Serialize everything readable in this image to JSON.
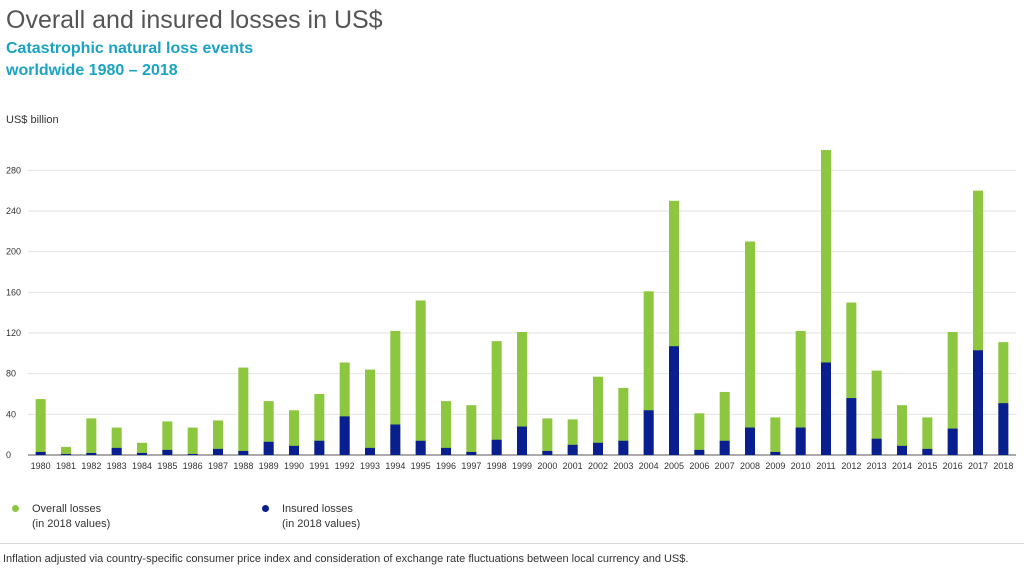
{
  "title": "Overall and insured losses in US$",
  "subtitle": "Catastrophic natural loss events\nworldwide 1980 – 2018",
  "colors": {
    "subtitle": "#1aa3c2",
    "overall": "#8dc63f",
    "insured": "#0a1f8f",
    "grid": "#e2e2e2",
    "axis": "#555555"
  },
  "legend": {
    "overall": "Overall losses\n(in 2018 values)",
    "insured": "Insured losses\n(in 2018 values)"
  },
  "footnote": "Inflation adjusted via country-specific consumer price index and consideration of exchange rate fluctuations between local currency and US$.",
  "chart_data": {
    "type": "bar",
    "stacked": "overlay",
    "ylabel": "US$ billion",
    "ylim": [
      0,
      300
    ],
    "yticks": [
      0,
      40,
      80,
      120,
      160,
      200,
      240,
      280
    ],
    "grid": true,
    "legend_position": "bottom-left",
    "categories": [
      "1980",
      "1981",
      "1982",
      "1983",
      "1984",
      "1985",
      "1986",
      "1987",
      "1988",
      "1989",
      "1990",
      "1991",
      "1992",
      "1993",
      "1994",
      "1995",
      "1996",
      "1997",
      "1998",
      "1999",
      "2000",
      "2001",
      "2002",
      "2003",
      "2004",
      "2005",
      "2006",
      "2007",
      "2008",
      "2009",
      "2010",
      "2011",
      "2012",
      "2013",
      "2014",
      "2015",
      "2016",
      "2017",
      "2018"
    ],
    "series": [
      {
        "name": "Overall losses (in 2018 values)",
        "color": "#8dc63f",
        "values": [
          55,
          8,
          36,
          27,
          12,
          33,
          27,
          34,
          86,
          53,
          44,
          60,
          91,
          84,
          122,
          152,
          53,
          49,
          112,
          121,
          36,
          35,
          77,
          66,
          161,
          250,
          41,
          62,
          210,
          37,
          122,
          300,
          150,
          83,
          49,
          37,
          121,
          260,
          111
        ]
      },
      {
        "name": "Insured losses (in 2018 values)",
        "color": "#0a1f8f",
        "values": [
          3,
          1,
          2,
          7,
          2,
          5,
          1,
          6,
          4,
          13,
          9,
          14,
          38,
          7,
          30,
          14,
          7,
          3,
          15,
          28,
          4,
          10,
          12,
          14,
          44,
          107,
          5,
          14,
          27,
          3,
          27,
          91,
          56,
          16,
          9,
          6,
          26,
          103,
          51
        ]
      }
    ]
  }
}
